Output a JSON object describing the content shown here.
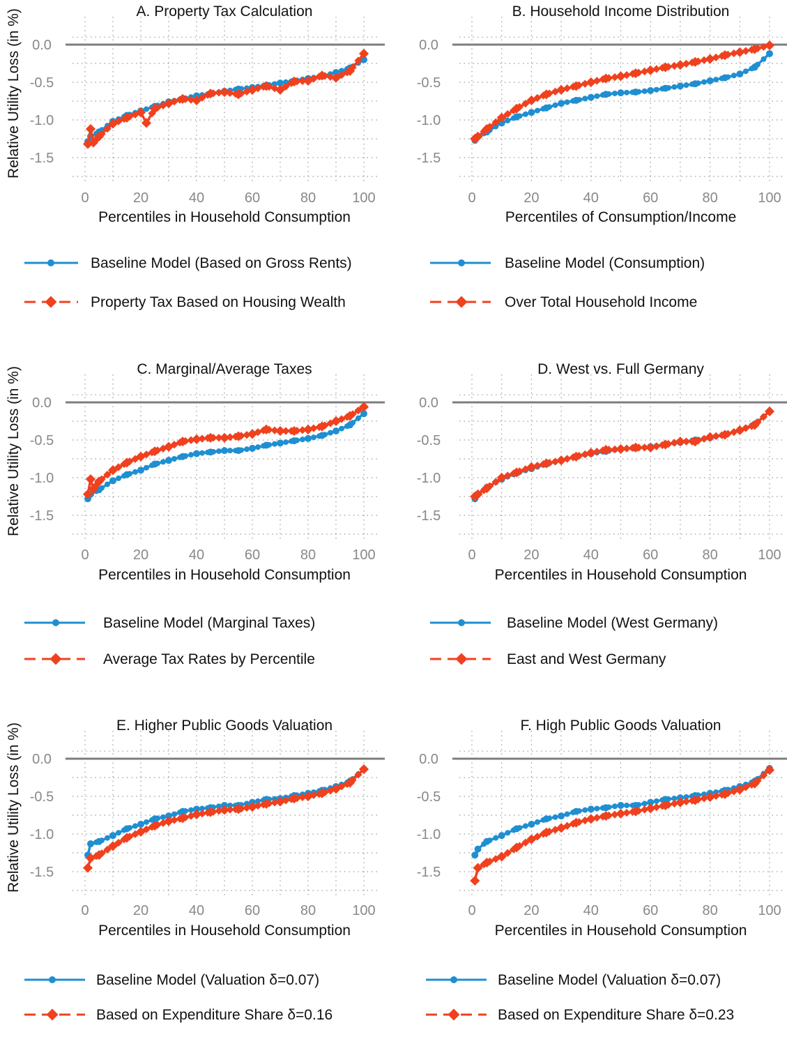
{
  "colors": {
    "baseline": "#1f8fd1",
    "alternative": "#f0411f",
    "zero_line": "#7d7d7d",
    "grid": "#9a9a9a",
    "tick_text": "#888888"
  },
  "chart_data": [
    {
      "panel": "A",
      "type": "line",
      "title": "A. Property Tax Calculation",
      "xlabel": "Percentiles in Household Consumption",
      "ylabel": "Relative Utility Loss (in %)",
      "xlim": [
        0,
        100
      ],
      "ylim": [
        -1.85,
        0.12
      ],
      "xticks": [
        "0",
        "20",
        "40",
        "60",
        "80",
        "100"
      ],
      "yticks": [
        "0.0",
        "-0.5",
        "-1.0",
        "-1.5"
      ],
      "series": [
        {
          "name": "Baseline Model (Based on Gross Rents)",
          "marker": "circle",
          "line": "solid",
          "x": [
            1,
            2,
            5,
            10,
            15,
            20,
            25,
            30,
            35,
            40,
            45,
            50,
            55,
            60,
            65,
            70,
            75,
            80,
            85,
            90,
            95,
            100
          ],
          "y": [
            -1.29,
            -1.22,
            -1.16,
            -1.02,
            -0.94,
            -0.88,
            -0.82,
            -0.76,
            -0.72,
            -0.68,
            -0.65,
            -0.62,
            -0.59,
            -0.57,
            -0.54,
            -0.51,
            -0.48,
            -0.45,
            -0.42,
            -0.37,
            -0.31,
            -0.2
          ]
        },
        {
          "name": "Property Tax Based on Housing Wealth",
          "marker": "diamond",
          "line": "dashed",
          "x": [
            1,
            2,
            3,
            5,
            10,
            15,
            20,
            22,
            25,
            30,
            35,
            40,
            45,
            50,
            55,
            60,
            65,
            70,
            75,
            80,
            85,
            90,
            95,
            100
          ],
          "y": [
            -1.32,
            -1.12,
            -1.3,
            -1.22,
            -1.05,
            -0.97,
            -0.9,
            -1.04,
            -0.85,
            -0.78,
            -0.72,
            -0.74,
            -0.65,
            -0.63,
            -0.66,
            -0.6,
            -0.55,
            -0.6,
            -0.49,
            -0.48,
            -0.41,
            -0.44,
            -0.35,
            -0.12
          ]
        }
      ]
    },
    {
      "panel": "B",
      "type": "line",
      "title": "B. Household Income Distribution",
      "xlabel": "Percentiles of Consumption/Income",
      "ylabel": "",
      "xlim": [
        0,
        100
      ],
      "ylim": [
        -1.85,
        0.12
      ],
      "xticks": [
        "0",
        "20",
        "40",
        "60",
        "80",
        "100"
      ],
      "yticks": [
        "0.0",
        "-0.5",
        "-1.0",
        "-1.5"
      ],
      "series": [
        {
          "name": "Baseline Model (Consumption)",
          "marker": "circle",
          "line": "solid",
          "x": [
            1,
            2,
            5,
            10,
            15,
            20,
            25,
            30,
            35,
            40,
            45,
            50,
            55,
            60,
            65,
            70,
            75,
            80,
            85,
            90,
            95,
            100
          ],
          "y": [
            -1.27,
            -1.22,
            -1.16,
            -1.04,
            -0.96,
            -0.9,
            -0.84,
            -0.78,
            -0.74,
            -0.7,
            -0.66,
            -0.64,
            -0.63,
            -0.61,
            -0.58,
            -0.55,
            -0.52,
            -0.48,
            -0.44,
            -0.39,
            -0.3,
            -0.12
          ]
        },
        {
          "name": "Over Total Household Income",
          "marker": "diamond",
          "line": "dashed",
          "x": [
            1,
            2,
            5,
            10,
            15,
            20,
            25,
            30,
            35,
            40,
            45,
            50,
            55,
            60,
            65,
            70,
            75,
            80,
            85,
            90,
            95,
            100
          ],
          "y": [
            -1.25,
            -1.22,
            -1.12,
            -0.97,
            -0.85,
            -0.74,
            -0.66,
            -0.6,
            -0.55,
            -0.5,
            -0.45,
            -0.42,
            -0.38,
            -0.34,
            -0.3,
            -0.27,
            -0.23,
            -0.19,
            -0.14,
            -0.1,
            -0.06,
            -0.01
          ]
        }
      ]
    },
    {
      "panel": "C",
      "type": "line",
      "title": "C. Marginal/Average Taxes",
      "xlabel": "Percentiles in Household Consumption",
      "ylabel": "Relative Utility Loss (in %)",
      "xlim": [
        0,
        100
      ],
      "ylim": [
        -1.85,
        0.12
      ],
      "xticks": [
        "0",
        "20",
        "40",
        "60",
        "80",
        "100"
      ],
      "yticks": [
        "0.0",
        "-0.5",
        "-1.0",
        "-1.5"
      ],
      "series": [
        {
          "name": "Baseline Model (Marginal Taxes)",
          "marker": "circle",
          "line": "solid",
          "x": [
            1,
            2,
            5,
            10,
            15,
            20,
            25,
            30,
            35,
            40,
            45,
            50,
            55,
            60,
            65,
            70,
            75,
            80,
            85,
            90,
            95,
            100
          ],
          "y": [
            -1.28,
            -1.22,
            -1.16,
            -1.04,
            -0.96,
            -0.9,
            -0.82,
            -0.77,
            -0.72,
            -0.68,
            -0.66,
            -0.64,
            -0.64,
            -0.61,
            -0.57,
            -0.54,
            -0.51,
            -0.48,
            -0.44,
            -0.38,
            -0.3,
            -0.15
          ]
        },
        {
          "name": "Average Tax Rates by Percentile",
          "marker": "diamond",
          "line": "dashed",
          "x": [
            1,
            2,
            3,
            5,
            10,
            15,
            20,
            25,
            30,
            35,
            40,
            45,
            50,
            55,
            60,
            65,
            70,
            75,
            80,
            85,
            90,
            95,
            100
          ],
          "y": [
            -1.22,
            -1.02,
            -1.15,
            -1.05,
            -0.9,
            -0.8,
            -0.72,
            -0.65,
            -0.59,
            -0.52,
            -0.49,
            -0.47,
            -0.47,
            -0.45,
            -0.42,
            -0.36,
            -0.38,
            -0.38,
            -0.36,
            -0.32,
            -0.25,
            -0.18,
            -0.06
          ]
        }
      ]
    },
    {
      "panel": "D",
      "type": "line",
      "title": "D. West vs. Full Germany",
      "xlabel": "Percentiles in Household Consumption",
      "ylabel": "",
      "xlim": [
        0,
        100
      ],
      "ylim": [
        -1.85,
        0.12
      ],
      "xticks": [
        "0",
        "20",
        "40",
        "60",
        "80",
        "100"
      ],
      "yticks": [
        "0.0",
        "-0.5",
        "-1.0",
        "-1.5"
      ],
      "series": [
        {
          "name": "Baseline Model (West Germany)",
          "marker": "circle",
          "line": "solid",
          "x": [
            1,
            2,
            5,
            10,
            15,
            20,
            25,
            30,
            35,
            40,
            45,
            50,
            55,
            60,
            65,
            70,
            75,
            80,
            85,
            90,
            95,
            100
          ],
          "y": [
            -1.28,
            -1.22,
            -1.13,
            -1.02,
            -0.94,
            -0.88,
            -0.82,
            -0.77,
            -0.72,
            -0.68,
            -0.65,
            -0.62,
            -0.61,
            -0.59,
            -0.56,
            -0.53,
            -0.5,
            -0.47,
            -0.43,
            -0.37,
            -0.29,
            -0.12
          ]
        },
        {
          "name": "East and West Germany",
          "marker": "diamond",
          "line": "dashed",
          "x": [
            1,
            2,
            5,
            10,
            15,
            20,
            25,
            30,
            35,
            40,
            45,
            50,
            55,
            60,
            65,
            70,
            75,
            80,
            85,
            90,
            95,
            100
          ],
          "y": [
            -1.25,
            -1.22,
            -1.14,
            -1.0,
            -0.93,
            -0.86,
            -0.81,
            -0.77,
            -0.72,
            -0.67,
            -0.63,
            -0.62,
            -0.6,
            -0.6,
            -0.56,
            -0.52,
            -0.52,
            -0.46,
            -0.43,
            -0.37,
            -0.3,
            -0.12
          ]
        }
      ]
    },
    {
      "panel": "E",
      "type": "line",
      "title": "E. Higher Public Goods Valuation",
      "xlabel": "Percentiles in Household Consumption",
      "ylabel": "Relative Utility Loss (in %)",
      "xlim": [
        0,
        100
      ],
      "ylim": [
        -1.85,
        0.12
      ],
      "xticks": [
        "0",
        "20",
        "40",
        "60",
        "80",
        "100"
      ],
      "yticks": [
        "0.0",
        "-0.5",
        "-1.0",
        "-1.5"
      ],
      "series": [
        {
          "name": "Baseline Model (Valuation δ=0.07)",
          "marker": "circle",
          "line": "solid",
          "x": [
            1,
            2,
            5,
            10,
            15,
            20,
            25,
            30,
            35,
            40,
            45,
            50,
            55,
            60,
            65,
            70,
            75,
            80,
            85,
            90,
            95,
            100
          ],
          "y": [
            -1.28,
            -1.13,
            -1.1,
            -1.02,
            -0.93,
            -0.87,
            -0.8,
            -0.76,
            -0.7,
            -0.67,
            -0.65,
            -0.62,
            -0.62,
            -0.58,
            -0.54,
            -0.53,
            -0.49,
            -0.46,
            -0.42,
            -0.37,
            -0.3,
            -0.14
          ]
        },
        {
          "name": "Based on Expenditure Share δ=0.16",
          "marker": "diamond",
          "line": "dashed",
          "x": [
            1,
            2,
            5,
            10,
            15,
            20,
            25,
            30,
            35,
            40,
            45,
            50,
            55,
            60,
            65,
            70,
            75,
            80,
            85,
            90,
            95,
            100
          ],
          "y": [
            -1.45,
            -1.32,
            -1.28,
            -1.16,
            -1.05,
            -0.97,
            -0.89,
            -0.83,
            -0.79,
            -0.74,
            -0.71,
            -0.68,
            -0.67,
            -0.64,
            -0.6,
            -0.57,
            -0.53,
            -0.5,
            -0.46,
            -0.4,
            -0.32,
            -0.14
          ]
        }
      ]
    },
    {
      "panel": "F",
      "type": "line",
      "title": "F. High Public Goods Valuation",
      "xlabel": "Percentiles in Household Consumption",
      "ylabel": "",
      "xlim": [
        0,
        100
      ],
      "ylim": [
        -1.85,
        0.12
      ],
      "xticks": [
        "0",
        "20",
        "40",
        "60",
        "80",
        "100"
      ],
      "yticks": [
        "0.0",
        "-0.5",
        "-1.0",
        "-1.5"
      ],
      "series": [
        {
          "name": "Baseline Model (Valuation δ=0.07)",
          "marker": "circle",
          "line": "solid",
          "x": [
            1,
            2,
            5,
            10,
            15,
            20,
            25,
            30,
            35,
            40,
            45,
            50,
            55,
            60,
            65,
            70,
            75,
            80,
            85,
            90,
            95,
            100
          ],
          "y": [
            -1.28,
            -1.2,
            -1.1,
            -1.02,
            -0.93,
            -0.87,
            -0.8,
            -0.76,
            -0.7,
            -0.67,
            -0.65,
            -0.62,
            -0.62,
            -0.58,
            -0.54,
            -0.52,
            -0.49,
            -0.46,
            -0.42,
            -0.37,
            -0.3,
            -0.13
          ]
        },
        {
          "name": "Based on Expenditure Share δ=0.23",
          "marker": "diamond",
          "line": "dashed",
          "x": [
            1,
            2,
            5,
            10,
            15,
            20,
            25,
            30,
            35,
            40,
            45,
            50,
            55,
            60,
            65,
            70,
            75,
            80,
            85,
            90,
            95,
            100
          ],
          "y": [
            -1.62,
            -1.45,
            -1.38,
            -1.3,
            -1.18,
            -1.07,
            -0.98,
            -0.92,
            -0.85,
            -0.8,
            -0.76,
            -0.73,
            -0.7,
            -0.66,
            -0.62,
            -0.58,
            -0.55,
            -0.51,
            -0.47,
            -0.41,
            -0.33,
            -0.15
          ]
        }
      ]
    }
  ]
}
